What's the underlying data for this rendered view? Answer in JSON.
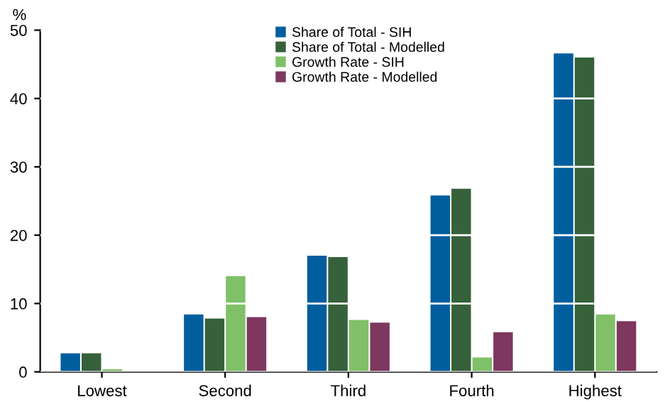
{
  "chart_data": {
    "type": "bar",
    "ylabel": "%",
    "categories": [
      "Lowest",
      "Second",
      "Third",
      "Fourth",
      "Highest"
    ],
    "series": [
      {
        "name": "Share of Total - SIH",
        "color": "#005e9e",
        "values": [
          2.7,
          8.4,
          17.0,
          25.8,
          46.6
        ]
      },
      {
        "name": "Share of Total - Modelled",
        "color": "#36613a",
        "values": [
          2.7,
          7.8,
          16.8,
          26.8,
          46.0
        ]
      },
      {
        "name": "Growth Rate - SIH",
        "color": "#80c068",
        "values": [
          0.4,
          14.0,
          7.6,
          2.1,
          8.4
        ]
      },
      {
        "name": "Growth Rate - Modelled",
        "color": "#7e375e",
        "values": [
          null,
          8.0,
          7.2,
          5.8,
          7.4
        ]
      }
    ],
    "ylim": [
      0,
      50
    ],
    "yticks": [
      0,
      10,
      20,
      30,
      40,
      50
    ],
    "grid": "y",
    "legend": "top"
  }
}
